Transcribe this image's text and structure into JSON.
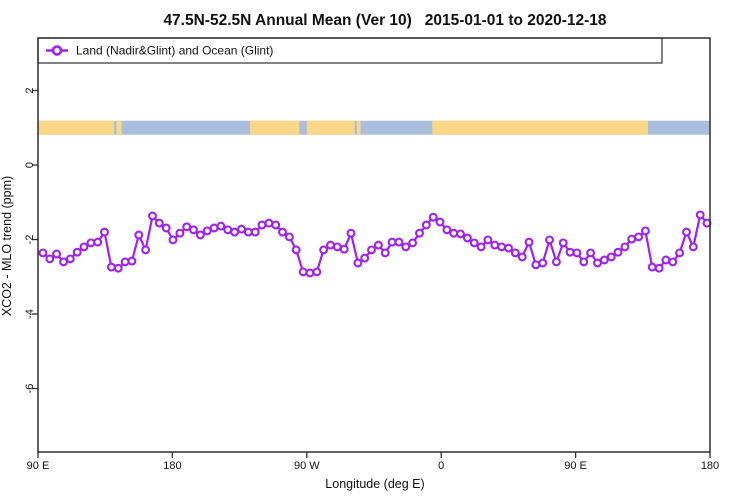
{
  "title": "47.5N-52.5N Annual Mean (Ver 10)   2015-01-01 to 2020-12-18",
  "legend": {
    "marker": "open-circle-on-line",
    "label": "Land (Nadir&Glint) and Ocean (Glint)"
  },
  "colors": {
    "series_line": "#A020F0",
    "marker_fill": "#ffffff",
    "land_band": "#FAD687",
    "ocean_band": "#A8BEDC",
    "frame": "#2e2e2e",
    "text": "#111111"
  },
  "chart_data": {
    "type": "line",
    "title": "47.5N-52.5N Annual Mean (Ver 10)   2015-01-01 to 2020-12-18",
    "xlabel": "Longitude (deg E)",
    "ylabel": "XCO2 - MLO trend (ppm)",
    "legend_position": "top-left full-width box",
    "grid": false,
    "x_axis": {
      "span_deg": [
        90,
        540
      ],
      "ticks": [
        {
          "deg": 90,
          "label": "90 E"
        },
        {
          "deg": 180,
          "label": "180"
        },
        {
          "deg": 270,
          "label": "90 W"
        },
        {
          "deg": 360,
          "label": "0"
        },
        {
          "deg": 450,
          "label": "90 E"
        },
        {
          "deg": 540,
          "label": "180"
        }
      ]
    },
    "y_axis": {
      "ylim": [
        -7.8,
        3.4
      ],
      "ticks": [
        {
          "value": 2,
          "label": "2"
        },
        {
          "value": 0,
          "label": "0"
        },
        {
          "value": -2,
          "label": "-2"
        },
        {
          "value": -4,
          "label": "-4"
        },
        {
          "value": -6,
          "label": "-6"
        }
      ]
    },
    "map_band": {
      "description": "land/ocean strip drawn at trend value +1 ppm",
      "value": 1,
      "span_deg": [
        90,
        540
      ],
      "ocean_color": "#A8BEDC",
      "land_color": "#FAD687",
      "land_segments_deg": [
        [
          90,
          141
        ],
        [
          142.5,
          146
        ],
        [
          232,
          265
        ],
        [
          270,
          302
        ],
        [
          303.5,
          306
        ],
        [
          354,
          498.5
        ]
      ]
    },
    "series": [
      {
        "name": "Land (Nadir&Glint) and Ocean (Glint)",
        "color": "#A020F0",
        "marker": "open-circle",
        "x_start_deg": 93.3,
        "x_end_deg": 538.0,
        "values": [
          -2.36,
          -2.52,
          -2.39,
          -2.6,
          -2.52,
          -2.34,
          -2.2,
          -2.09,
          -2.07,
          -1.8,
          -2.74,
          -2.77,
          -2.6,
          -2.58,
          -1.88,
          -2.28,
          -1.37,
          -1.56,
          -1.69,
          -2.01,
          -1.83,
          -1.66,
          -1.74,
          -1.88,
          -1.77,
          -1.69,
          -1.64,
          -1.74,
          -1.8,
          -1.72,
          -1.8,
          -1.8,
          -1.61,
          -1.56,
          -1.61,
          -1.8,
          -1.93,
          -2.28,
          -2.87,
          -2.9,
          -2.87,
          -2.28,
          -2.15,
          -2.2,
          -2.26,
          -1.83,
          -2.63,
          -2.5,
          -2.28,
          -2.15,
          -2.36,
          -2.07,
          -2.07,
          -2.2,
          -2.09,
          -1.83,
          -1.61,
          -1.4,
          -1.53,
          -1.74,
          -1.83,
          -1.85,
          -1.96,
          -2.09,
          -2.2,
          -2.01,
          -2.15,
          -2.2,
          -2.23,
          -2.36,
          -2.47,
          -2.07,
          -2.68,
          -2.63,
          -2.01,
          -2.6,
          -2.09,
          -2.34,
          -2.36,
          -2.6,
          -2.36,
          -2.63,
          -2.55,
          -2.47,
          -2.34,
          -2.2,
          -1.99,
          -1.93,
          -1.77,
          -2.74,
          -2.77,
          -2.55,
          -2.6,
          -2.36,
          -1.8,
          -2.2,
          -1.34,
          -1.56
        ]
      }
    ]
  }
}
